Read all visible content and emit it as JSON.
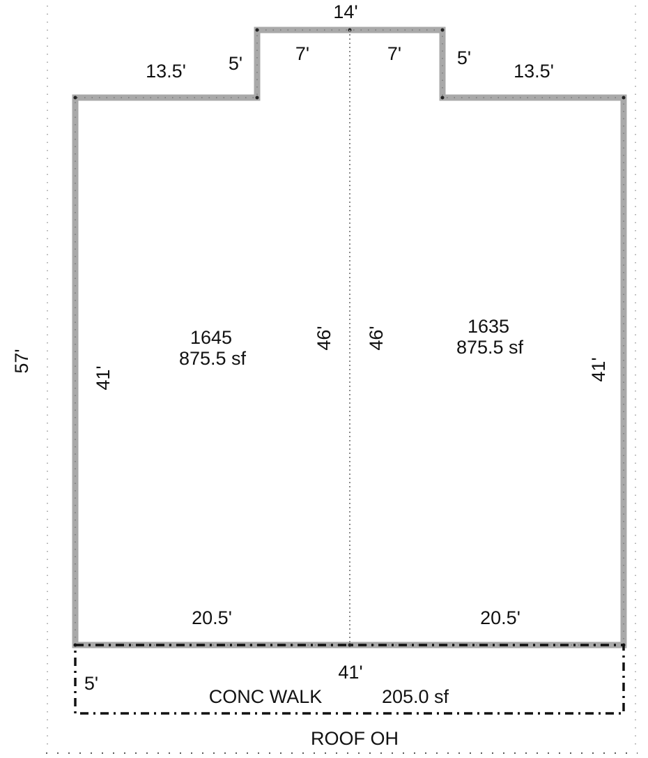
{
  "plan": {
    "overall_depth": "57'",
    "top_bump_width": "14'",
    "top_left_segment": "13.5'",
    "top_right_segment": "13.5'",
    "bump_left_side": "5'",
    "bump_right_side": "5'",
    "bump_left_half": "7'",
    "bump_right_half": "7'",
    "left_side": "41'",
    "right_side": "41'",
    "divider_left": "46'",
    "divider_right": "46'",
    "bottom_left": "20.5'",
    "bottom_right": "20.5'",
    "left_unit": {
      "number": "1645",
      "area": "875.5 sf"
    },
    "right_unit": {
      "number": "1635",
      "area": "875.5 sf"
    },
    "walk": {
      "width": "41'",
      "depth": "5'",
      "label": "CONC WALK",
      "area": "205.0 sf"
    },
    "roof_label": "ROOF OH"
  }
}
